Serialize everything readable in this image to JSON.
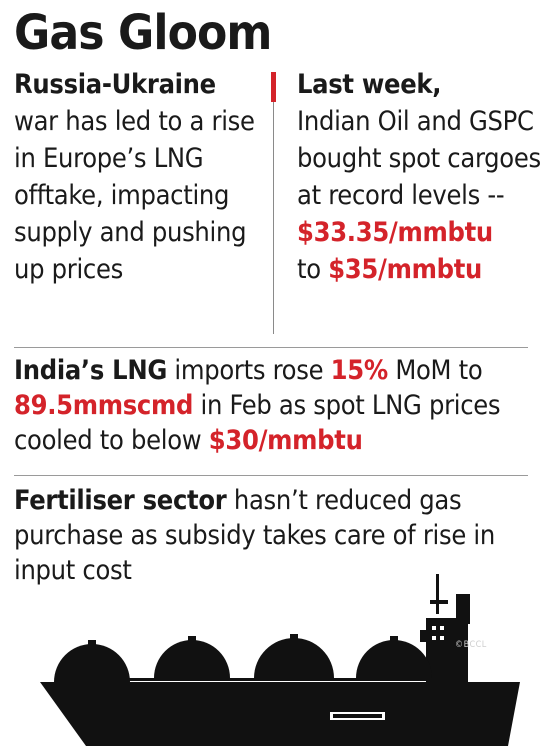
{
  "title": "Gas Gloom",
  "left_column": {
    "heading": "Russia-Ukraine",
    "body": "war has led to a rise in Europe’s LNG offtake, impacting supply and pushing up prices"
  },
  "right_column": {
    "heading": "Last week,",
    "body": "Indian Oil and GSPC bought spot cargoes at record levels --",
    "price_low": "$33.35/mmbtu",
    "to_word": "to",
    "price_high": "$35/mmbtu"
  },
  "imports_paragraph": {
    "subject": "India’s LNG",
    "text1": " imports rose ",
    "pct": "15%",
    "text2": " MoM to ",
    "volume": "89.5mmscmd",
    "text3": " in Feb as spot LNG prices cooled to below ",
    "price": "$30/mmbtu"
  },
  "fertiliser_paragraph": {
    "subject": "Fertiliser sector",
    "text": " hasn’t reduced gas purchase as subsidy takes care of rise in input cost"
  },
  "watermark": "©BCCL",
  "colors": {
    "accent_red": "#d4232a",
    "text": "#1a1a1a",
    "ship": "#111111"
  },
  "illustration": "lng-tanker-ship-icon"
}
